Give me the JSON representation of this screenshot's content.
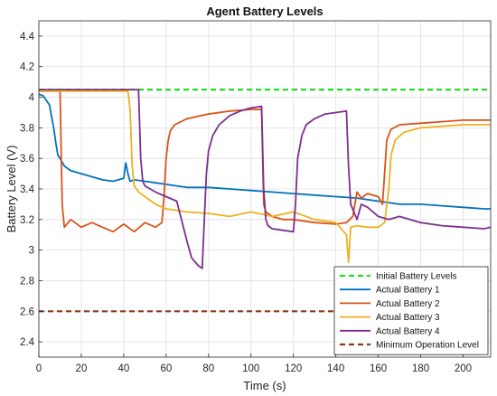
{
  "chart_data": {
    "type": "line",
    "title": "Agent Battery Levels",
    "xlabel": "Time (s)",
    "ylabel": "Battery Level (V)",
    "xlim": [
      0,
      213
    ],
    "ylim": [
      2.3,
      4.5
    ],
    "x_ticks": [
      "0",
      "20",
      "40",
      "60",
      "80",
      "100",
      "120",
      "140",
      "160",
      "180",
      "200"
    ],
    "y_ticks": [
      "2.4",
      "2.6",
      "2.8",
      "3",
      "3.2",
      "3.4",
      "3.6",
      "3.8",
      "4",
      "4.2",
      "4.4"
    ],
    "grid": true,
    "legend_position": "bottom-right",
    "series": [
      {
        "name": "Initial Battery Levels",
        "color": "#22dd22",
        "style": "dashed",
        "x": [
          0,
          213
        ],
        "y": [
          4.05,
          4.05
        ]
      },
      {
        "name": "Actual Battery 1",
        "color": "#0072bd",
        "style": "solid",
        "x": [
          0,
          2,
          5,
          7,
          8,
          9,
          10,
          12,
          15,
          20,
          25,
          30,
          35,
          40,
          41,
          42,
          43,
          45,
          50,
          55,
          60,
          65,
          70,
          80,
          90,
          100,
          110,
          120,
          130,
          140,
          150,
          155,
          160,
          170,
          180,
          190,
          200,
          210,
          213
        ],
        "y": [
          4.02,
          4.01,
          3.95,
          3.8,
          3.7,
          3.62,
          3.6,
          3.55,
          3.52,
          3.5,
          3.48,
          3.46,
          3.45,
          3.47,
          3.57,
          3.5,
          3.45,
          3.46,
          3.45,
          3.44,
          3.43,
          3.42,
          3.41,
          3.41,
          3.4,
          3.39,
          3.38,
          3.37,
          3.36,
          3.35,
          3.34,
          3.33,
          3.32,
          3.3,
          3.3,
          3.29,
          3.28,
          3.27,
          3.27
        ]
      },
      {
        "name": "Actual Battery 2",
        "color": "#d95319",
        "style": "solid",
        "x": [
          0,
          10,
          11,
          12,
          15,
          20,
          25,
          30,
          35,
          40,
          45,
          50,
          55,
          58,
          59,
          60,
          61,
          62,
          64,
          70,
          80,
          90,
          100,
          105,
          106,
          107,
          110,
          115,
          120,
          130,
          140,
          145,
          148,
          150,
          152,
          155,
          160,
          162,
          163,
          164,
          166,
          170,
          180,
          190,
          200,
          213
        ],
        "y": [
          4.04,
          4.04,
          3.3,
          3.15,
          3.2,
          3.15,
          3.18,
          3.15,
          3.12,
          3.17,
          3.12,
          3.18,
          3.15,
          3.18,
          3.35,
          3.6,
          3.72,
          3.78,
          3.82,
          3.86,
          3.89,
          3.91,
          3.92,
          3.92,
          3.3,
          3.25,
          3.22,
          3.2,
          3.2,
          3.18,
          3.17,
          3.18,
          3.22,
          3.38,
          3.34,
          3.37,
          3.35,
          3.3,
          3.5,
          3.72,
          3.79,
          3.82,
          3.83,
          3.84,
          3.85,
          3.85
        ]
      },
      {
        "name": "Actual Battery 3",
        "color": "#edb120",
        "style": "solid",
        "x": [
          0,
          40,
          42,
          43,
          44,
          45,
          47,
          50,
          55,
          60,
          70,
          80,
          90,
          100,
          110,
          120,
          130,
          140,
          145,
          146,
          147,
          150,
          155,
          160,
          163,
          165,
          166,
          168,
          172,
          180,
          190,
          200,
          213
        ],
        "y": [
          4.04,
          4.04,
          4.04,
          3.92,
          3.55,
          3.42,
          3.38,
          3.35,
          3.3,
          3.27,
          3.25,
          3.24,
          3.22,
          3.25,
          3.22,
          3.25,
          3.2,
          3.18,
          3.1,
          2.92,
          3.15,
          3.16,
          3.15,
          3.15,
          3.18,
          3.4,
          3.62,
          3.72,
          3.77,
          3.8,
          3.81,
          3.82,
          3.82
        ]
      },
      {
        "name": "Actual Battery 4",
        "color": "#7e2f8e",
        "style": "solid",
        "x": [
          0,
          47,
          48,
          49,
          50,
          55,
          60,
          65,
          70,
          72,
          75,
          77,
          78,
          79,
          80,
          82,
          85,
          90,
          95,
          100,
          105,
          106,
          107,
          108,
          110,
          115,
          120,
          121,
          122,
          124,
          126,
          130,
          135,
          140,
          145,
          146,
          147,
          150,
          152,
          155,
          160,
          165,
          170,
          180,
          190,
          200,
          210,
          213
        ],
        "y": [
          4.05,
          4.05,
          3.6,
          3.45,
          3.42,
          3.38,
          3.35,
          3.32,
          3.05,
          2.95,
          2.9,
          2.88,
          3.2,
          3.5,
          3.65,
          3.75,
          3.82,
          3.88,
          3.91,
          3.93,
          3.94,
          3.4,
          3.2,
          3.16,
          3.14,
          3.13,
          3.12,
          3.3,
          3.6,
          3.75,
          3.82,
          3.86,
          3.89,
          3.9,
          3.91,
          3.55,
          3.3,
          3.2,
          3.3,
          3.28,
          3.22,
          3.2,
          3.22,
          3.18,
          3.16,
          3.15,
          3.14,
          3.15
        ]
      },
      {
        "name": "Minimum Operation Level",
        "color": "#8b3a1a",
        "style": "dashed",
        "x": [
          0,
          213
        ],
        "y": [
          2.6,
          2.6
        ]
      }
    ]
  }
}
